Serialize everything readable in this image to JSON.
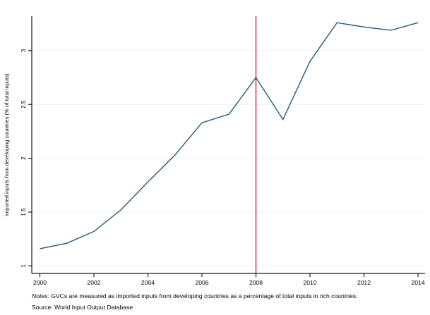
{
  "chart_data": {
    "type": "line",
    "x": [
      2000,
      2001,
      2002,
      2003,
      2004,
      2005,
      2006,
      2007,
      2008,
      2009,
      2010,
      2011,
      2012,
      2013,
      2014
    ],
    "series": [
      {
        "name": "imported inputs from developing countries",
        "values": [
          1.16,
          1.21,
          1.32,
          1.52,
          1.78,
          2.03,
          2.33,
          2.41,
          2.75,
          2.36,
          2.9,
          3.26,
          3.22,
          3.19,
          3.26
        ]
      }
    ],
    "title": "",
    "xlabel": "",
    "ylabel": "imported inputs from developing countries (% of total inputs)",
    "x_ticks": [
      2000,
      2002,
      2004,
      2006,
      2008,
      2010,
      2012,
      2014
    ],
    "y_ticks": [
      1,
      1.5,
      2,
      2.5,
      3
    ],
    "y_tick_labels": [
      "1",
      "1.5",
      "2",
      "2.5",
      "3"
    ],
    "xlim": [
      1999.7,
      2014.26
    ],
    "ylim": [
      0.93,
      3.32
    ],
    "grid": true,
    "legend": false,
    "reference_line_x": 2008,
    "line_color": "#24587a",
    "reference_line_color": "#c41238",
    "grid_color": "#eaf2f1",
    "axis_color": "#1a1a1a"
  },
  "notes": {
    "label": "Notes:",
    "body": " GVCs are measured as imported inputs from developing countries as a percentage of total inputs in rich countries.",
    "source": "Source: World Input Output Database"
  }
}
